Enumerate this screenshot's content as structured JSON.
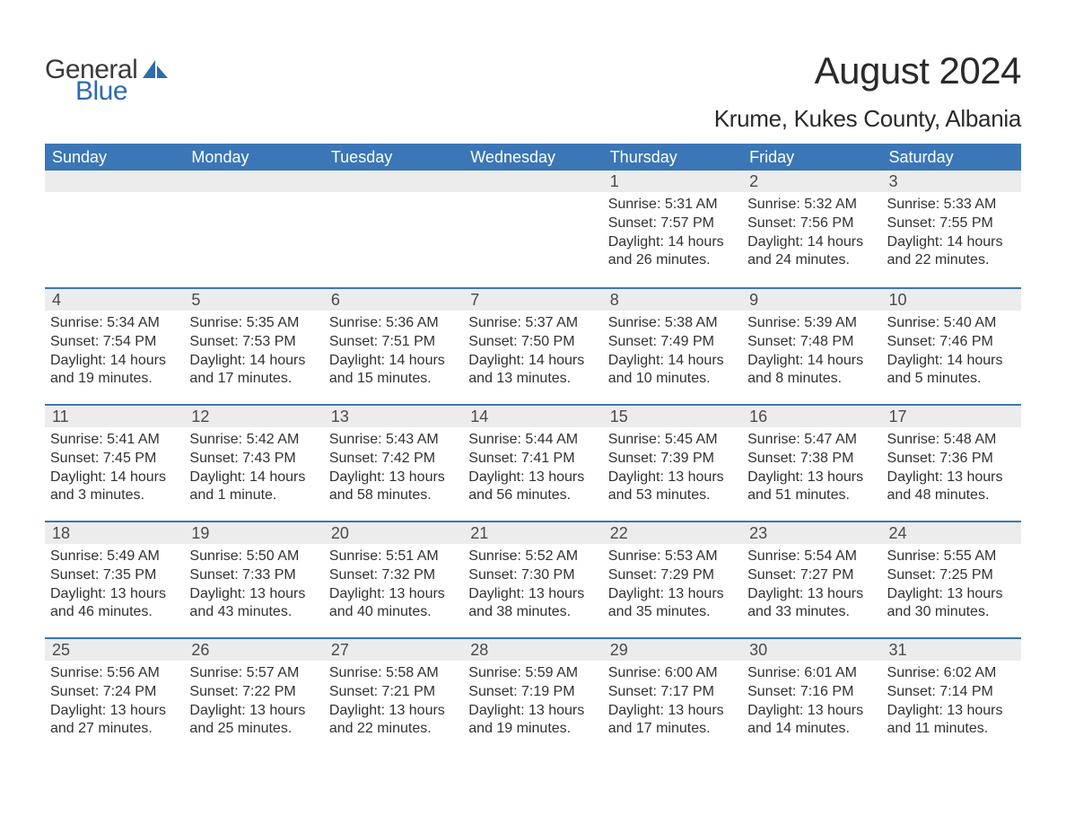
{
  "logo": {
    "text1": "General",
    "text2": "Blue"
  },
  "title": "August 2024",
  "subtitle": "Krume, Kukes County, Albania",
  "colors": {
    "header_bg": "#3b76b7",
    "header_text": "#ffffff",
    "daynum_bg": "#ececec",
    "week_border": "#3b76b7",
    "body_text": "#323232",
    "logo_blue": "#2f6bad",
    "title_fontsize": 42,
    "subtitle_fontsize": 26,
    "header_fontsize": 18,
    "body_fontsize": 16
  },
  "columns": [
    "Sunday",
    "Monday",
    "Tuesday",
    "Wednesday",
    "Thursday",
    "Friday",
    "Saturday"
  ],
  "weeks": [
    [
      {
        "n": "",
        "sr": "",
        "ss": "",
        "dl": ""
      },
      {
        "n": "",
        "sr": "",
        "ss": "",
        "dl": ""
      },
      {
        "n": "",
        "sr": "",
        "ss": "",
        "dl": ""
      },
      {
        "n": "",
        "sr": "",
        "ss": "",
        "dl": ""
      },
      {
        "n": "1",
        "sr": "Sunrise: 5:31 AM",
        "ss": "Sunset: 7:57 PM",
        "dl": "Daylight: 14 hours and 26 minutes."
      },
      {
        "n": "2",
        "sr": "Sunrise: 5:32 AM",
        "ss": "Sunset: 7:56 PM",
        "dl": "Daylight: 14 hours and 24 minutes."
      },
      {
        "n": "3",
        "sr": "Sunrise: 5:33 AM",
        "ss": "Sunset: 7:55 PM",
        "dl": "Daylight: 14 hours and 22 minutes."
      }
    ],
    [
      {
        "n": "4",
        "sr": "Sunrise: 5:34 AM",
        "ss": "Sunset: 7:54 PM",
        "dl": "Daylight: 14 hours and 19 minutes."
      },
      {
        "n": "5",
        "sr": "Sunrise: 5:35 AM",
        "ss": "Sunset: 7:53 PM",
        "dl": "Daylight: 14 hours and 17 minutes."
      },
      {
        "n": "6",
        "sr": "Sunrise: 5:36 AM",
        "ss": "Sunset: 7:51 PM",
        "dl": "Daylight: 14 hours and 15 minutes."
      },
      {
        "n": "7",
        "sr": "Sunrise: 5:37 AM",
        "ss": "Sunset: 7:50 PM",
        "dl": "Daylight: 14 hours and 13 minutes."
      },
      {
        "n": "8",
        "sr": "Sunrise: 5:38 AM",
        "ss": "Sunset: 7:49 PM",
        "dl": "Daylight: 14 hours and 10 minutes."
      },
      {
        "n": "9",
        "sr": "Sunrise: 5:39 AM",
        "ss": "Sunset: 7:48 PM",
        "dl": "Daylight: 14 hours and 8 minutes."
      },
      {
        "n": "10",
        "sr": "Sunrise: 5:40 AM",
        "ss": "Sunset: 7:46 PM",
        "dl": "Daylight: 14 hours and 5 minutes."
      }
    ],
    [
      {
        "n": "11",
        "sr": "Sunrise: 5:41 AM",
        "ss": "Sunset: 7:45 PM",
        "dl": "Daylight: 14 hours and 3 minutes."
      },
      {
        "n": "12",
        "sr": "Sunrise: 5:42 AM",
        "ss": "Sunset: 7:43 PM",
        "dl": "Daylight: 14 hours and 1 minute."
      },
      {
        "n": "13",
        "sr": "Sunrise: 5:43 AM",
        "ss": "Sunset: 7:42 PM",
        "dl": "Daylight: 13 hours and 58 minutes."
      },
      {
        "n": "14",
        "sr": "Sunrise: 5:44 AM",
        "ss": "Sunset: 7:41 PM",
        "dl": "Daylight: 13 hours and 56 minutes."
      },
      {
        "n": "15",
        "sr": "Sunrise: 5:45 AM",
        "ss": "Sunset: 7:39 PM",
        "dl": "Daylight: 13 hours and 53 minutes."
      },
      {
        "n": "16",
        "sr": "Sunrise: 5:47 AM",
        "ss": "Sunset: 7:38 PM",
        "dl": "Daylight: 13 hours and 51 minutes."
      },
      {
        "n": "17",
        "sr": "Sunrise: 5:48 AM",
        "ss": "Sunset: 7:36 PM",
        "dl": "Daylight: 13 hours and 48 minutes."
      }
    ],
    [
      {
        "n": "18",
        "sr": "Sunrise: 5:49 AM",
        "ss": "Sunset: 7:35 PM",
        "dl": "Daylight: 13 hours and 46 minutes."
      },
      {
        "n": "19",
        "sr": "Sunrise: 5:50 AM",
        "ss": "Sunset: 7:33 PM",
        "dl": "Daylight: 13 hours and 43 minutes."
      },
      {
        "n": "20",
        "sr": "Sunrise: 5:51 AM",
        "ss": "Sunset: 7:32 PM",
        "dl": "Daylight: 13 hours and 40 minutes."
      },
      {
        "n": "21",
        "sr": "Sunrise: 5:52 AM",
        "ss": "Sunset: 7:30 PM",
        "dl": "Daylight: 13 hours and 38 minutes."
      },
      {
        "n": "22",
        "sr": "Sunrise: 5:53 AM",
        "ss": "Sunset: 7:29 PM",
        "dl": "Daylight: 13 hours and 35 minutes."
      },
      {
        "n": "23",
        "sr": "Sunrise: 5:54 AM",
        "ss": "Sunset: 7:27 PM",
        "dl": "Daylight: 13 hours and 33 minutes."
      },
      {
        "n": "24",
        "sr": "Sunrise: 5:55 AM",
        "ss": "Sunset: 7:25 PM",
        "dl": "Daylight: 13 hours and 30 minutes."
      }
    ],
    [
      {
        "n": "25",
        "sr": "Sunrise: 5:56 AM",
        "ss": "Sunset: 7:24 PM",
        "dl": "Daylight: 13 hours and 27 minutes."
      },
      {
        "n": "26",
        "sr": "Sunrise: 5:57 AM",
        "ss": "Sunset: 7:22 PM",
        "dl": "Daylight: 13 hours and 25 minutes."
      },
      {
        "n": "27",
        "sr": "Sunrise: 5:58 AM",
        "ss": "Sunset: 7:21 PM",
        "dl": "Daylight: 13 hours and 22 minutes."
      },
      {
        "n": "28",
        "sr": "Sunrise: 5:59 AM",
        "ss": "Sunset: 7:19 PM",
        "dl": "Daylight: 13 hours and 19 minutes."
      },
      {
        "n": "29",
        "sr": "Sunrise: 6:00 AM",
        "ss": "Sunset: 7:17 PM",
        "dl": "Daylight: 13 hours and 17 minutes."
      },
      {
        "n": "30",
        "sr": "Sunrise: 6:01 AM",
        "ss": "Sunset: 7:16 PM",
        "dl": "Daylight: 13 hours and 14 minutes."
      },
      {
        "n": "31",
        "sr": "Sunrise: 6:02 AM",
        "ss": "Sunset: 7:14 PM",
        "dl": "Daylight: 13 hours and 11 minutes."
      }
    ]
  ]
}
